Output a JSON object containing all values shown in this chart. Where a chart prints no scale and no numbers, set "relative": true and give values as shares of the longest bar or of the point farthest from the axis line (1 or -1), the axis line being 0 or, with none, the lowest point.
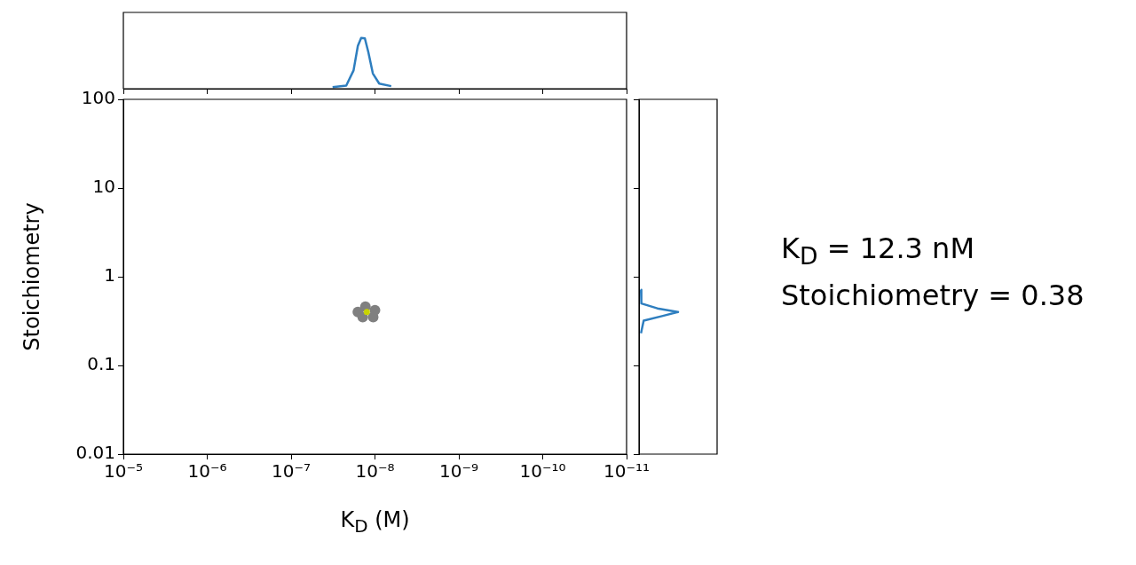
{
  "chart_data": [
    {
      "type": "line",
      "relative": true,
      "log": "x",
      "xlim": [
        1e-05,
        1e-11
      ],
      "xticks": [
        {
          "value": 1e-05,
          "label": null
        },
        {
          "value": 1e-06,
          "label": null
        },
        {
          "value": 1e-07,
          "label": null
        },
        {
          "value": 1e-08,
          "label": null
        },
        {
          "value": 1e-09,
          "label": null
        },
        {
          "value": 1e-10,
          "label": null
        },
        {
          "value": 1e-11,
          "label": null
        }
      ],
      "tick_labels": false,
      "series": [
        {
          "color": "#2e7ebf",
          "x": [
            3.2e-08,
            2.2e-08,
            1.8e-08,
            1.6e-08,
            1.46e-08,
            1.32e-08,
            1.2e-08,
            1.06e-08,
            8.9e-09,
            6.4e-09
          ],
          "values": [
            0.03,
            0.06,
            0.36,
            0.84,
            1,
            0.99,
            0.72,
            0.3,
            0.1,
            0.05
          ]
        }
      ]
    },
    {
      "type": "scatter",
      "log": "xy",
      "xlim": [
        1e-05,
        1e-11
      ],
      "xticks": [
        {
          "value": 1e-05,
          "label": "10⁻⁵"
        },
        {
          "value": 1e-06,
          "label": "10⁻⁶"
        },
        {
          "value": 1e-07,
          "label": "10⁻⁷"
        },
        {
          "value": 1e-08,
          "label": "10⁻⁸"
        },
        {
          "value": 1e-09,
          "label": "10⁻⁹"
        },
        {
          "value": 1e-10,
          "label": "10⁻¹⁰"
        },
        {
          "value": 1e-11,
          "label": "10⁻¹¹"
        }
      ],
      "ylim": [
        0.01,
        100
      ],
      "yticks": [
        0.01,
        0.1,
        1,
        10,
        100
      ],
      "xlabel": "K$_{D}$ (M)",
      "ylabel": "Stoichiometry",
      "grid": false,
      "marker": "circle",
      "annotations": [
        "K$_{D}$ = 12.3 nM",
        "Stoichiometry = 0.38"
      ],
      "series": [
        {
          "color": "#808080",
          "x": [
            1.6e-08,
            1.3e-08,
            1e-08,
            1.05e-08,
            1.4e-08
          ],
          "values": [
            0.4,
            0.46,
            0.42,
            0.35,
            0.35
          ]
        },
        {
          "color": "#c8d400",
          "x": [
            1.25e-08
          ],
          "values": [
            0.4
          ]
        }
      ]
    },
    {
      "type": "line",
      "relative": true,
      "orientation": "horizontal",
      "log": "y",
      "ylim": [
        0.01,
        100
      ],
      "yticks": [
        0.01,
        0.1,
        1,
        10,
        100
      ],
      "tick_labels": false,
      "series": [
        {
          "color": "#2e7ebf",
          "x": [
            0.71,
            0.5,
            0.44,
            0.4,
            0.36,
            0.32,
            0.23
          ],
          "values": [
            0.05,
            0.06,
            0.47,
            1,
            0.59,
            0.12,
            0.05
          ]
        }
      ]
    }
  ]
}
